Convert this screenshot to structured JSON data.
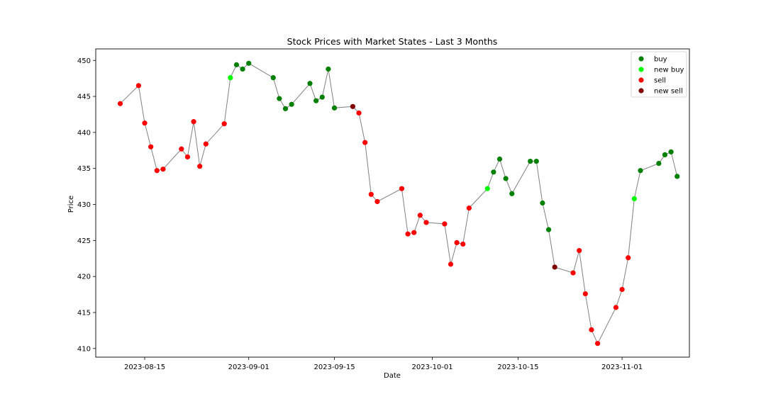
{
  "chart_data": {
    "type": "scatter",
    "title": "Stock Prices with Market States - Last 3 Months",
    "xlabel": "Date",
    "ylabel": "Price",
    "xlim": [
      "2023-08-07",
      "2023-11-12"
    ],
    "ylim": [
      408.8,
      451.6
    ],
    "x_ticks": [
      "2023-08-15",
      "2023-09-01",
      "2023-09-15",
      "2023-10-01",
      "2023-10-15",
      "2023-11-01"
    ],
    "y_ticks": [
      410,
      415,
      420,
      425,
      430,
      435,
      440,
      445,
      450
    ],
    "grid": false,
    "legend_position": "top-right",
    "line_color": "#808080",
    "series": [
      {
        "name": "buy",
        "color": "#008000"
      },
      {
        "name": "new buy",
        "color": "#00ff00"
      },
      {
        "name": "sell",
        "color": "#ff0000"
      },
      {
        "name": "new sell",
        "color": "#800000"
      }
    ],
    "points": [
      {
        "x": "2023-08-11",
        "y": 444.0,
        "state": "sell"
      },
      {
        "x": "2023-08-14",
        "y": 446.5,
        "state": "sell"
      },
      {
        "x": "2023-08-15",
        "y": 441.3,
        "state": "sell"
      },
      {
        "x": "2023-08-16",
        "y": 438.0,
        "state": "sell"
      },
      {
        "x": "2023-08-17",
        "y": 434.7,
        "state": "sell"
      },
      {
        "x": "2023-08-18",
        "y": 434.9,
        "state": "sell"
      },
      {
        "x": "2023-08-21",
        "y": 437.7,
        "state": "sell"
      },
      {
        "x": "2023-08-22",
        "y": 436.6,
        "state": "sell"
      },
      {
        "x": "2023-08-23",
        "y": 441.5,
        "state": "sell"
      },
      {
        "x": "2023-08-24",
        "y": 435.3,
        "state": "sell"
      },
      {
        "x": "2023-08-25",
        "y": 438.4,
        "state": "sell"
      },
      {
        "x": "2023-08-28",
        "y": 441.2,
        "state": "sell"
      },
      {
        "x": "2023-08-29",
        "y": 447.6,
        "state": "new buy"
      },
      {
        "x": "2023-08-30",
        "y": 449.4,
        "state": "buy"
      },
      {
        "x": "2023-08-31",
        "y": 448.8,
        "state": "buy"
      },
      {
        "x": "2023-09-01",
        "y": 449.6,
        "state": "buy"
      },
      {
        "x": "2023-09-05",
        "y": 447.6,
        "state": "buy"
      },
      {
        "x": "2023-09-06",
        "y": 444.7,
        "state": "buy"
      },
      {
        "x": "2023-09-07",
        "y": 443.3,
        "state": "buy"
      },
      {
        "x": "2023-09-08",
        "y": 443.9,
        "state": "buy"
      },
      {
        "x": "2023-09-11",
        "y": 446.8,
        "state": "buy"
      },
      {
        "x": "2023-09-12",
        "y": 444.4,
        "state": "buy"
      },
      {
        "x": "2023-09-13",
        "y": 444.9,
        "state": "buy"
      },
      {
        "x": "2023-09-14",
        "y": 448.8,
        "state": "buy"
      },
      {
        "x": "2023-09-15",
        "y": 443.4,
        "state": "buy"
      },
      {
        "x": "2023-09-18",
        "y": 443.6,
        "state": "new sell"
      },
      {
        "x": "2023-09-19",
        "y": 442.7,
        "state": "sell"
      },
      {
        "x": "2023-09-20",
        "y": 438.6,
        "state": "sell"
      },
      {
        "x": "2023-09-21",
        "y": 431.4,
        "state": "sell"
      },
      {
        "x": "2023-09-22",
        "y": 430.4,
        "state": "sell"
      },
      {
        "x": "2023-09-26",
        "y": 432.2,
        "state": "sell"
      },
      {
        "x": "2023-09-27",
        "y": 425.9,
        "state": "sell"
      },
      {
        "x": "2023-09-28",
        "y": 426.1,
        "state": "sell"
      },
      {
        "x": "2023-09-29",
        "y": 428.5,
        "state": "sell"
      },
      {
        "x": "2023-09-30",
        "y": 427.5,
        "state": "sell"
      },
      {
        "x": "2023-10-03",
        "y": 427.3,
        "state": "sell"
      },
      {
        "x": "2023-10-04",
        "y": 421.7,
        "state": "sell"
      },
      {
        "x": "2023-10-05",
        "y": 424.7,
        "state": "sell"
      },
      {
        "x": "2023-10-06",
        "y": 424.5,
        "state": "sell"
      },
      {
        "x": "2023-10-07",
        "y": 429.5,
        "state": "sell"
      },
      {
        "x": "2023-10-10",
        "y": 432.2,
        "state": "new buy"
      },
      {
        "x": "2023-10-11",
        "y": 434.5,
        "state": "buy"
      },
      {
        "x": "2023-10-12",
        "y": 436.3,
        "state": "buy"
      },
      {
        "x": "2023-10-13",
        "y": 433.6,
        "state": "buy"
      },
      {
        "x": "2023-10-14",
        "y": 431.5,
        "state": "buy"
      },
      {
        "x": "2023-10-17",
        "y": 436.0,
        "state": "buy"
      },
      {
        "x": "2023-10-18",
        "y": 436.0,
        "state": "buy"
      },
      {
        "x": "2023-10-19",
        "y": 430.2,
        "state": "buy"
      },
      {
        "x": "2023-10-20",
        "y": 426.5,
        "state": "buy"
      },
      {
        "x": "2023-10-21",
        "y": 421.3,
        "state": "new sell"
      },
      {
        "x": "2023-10-24",
        "y": 420.5,
        "state": "sell"
      },
      {
        "x": "2023-10-25",
        "y": 423.6,
        "state": "sell"
      },
      {
        "x": "2023-10-26",
        "y": 417.6,
        "state": "sell"
      },
      {
        "x": "2023-10-27",
        "y": 412.6,
        "state": "sell"
      },
      {
        "x": "2023-10-28",
        "y": 410.7,
        "state": "sell"
      },
      {
        "x": "2023-10-31",
        "y": 415.7,
        "state": "sell"
      },
      {
        "x": "2023-11-01",
        "y": 418.2,
        "state": "sell"
      },
      {
        "x": "2023-11-02",
        "y": 422.6,
        "state": "sell"
      },
      {
        "x": "2023-11-03",
        "y": 430.8,
        "state": "new buy"
      },
      {
        "x": "2023-11-04",
        "y": 434.7,
        "state": "buy"
      },
      {
        "x": "2023-11-07",
        "y": 435.7,
        "state": "buy"
      },
      {
        "x": "2023-11-08",
        "y": 436.9,
        "state": "buy"
      },
      {
        "x": "2023-11-09",
        "y": 437.3,
        "state": "buy"
      },
      {
        "x": "2023-11-10",
        "y": 433.9,
        "state": "buy"
      }
    ]
  }
}
